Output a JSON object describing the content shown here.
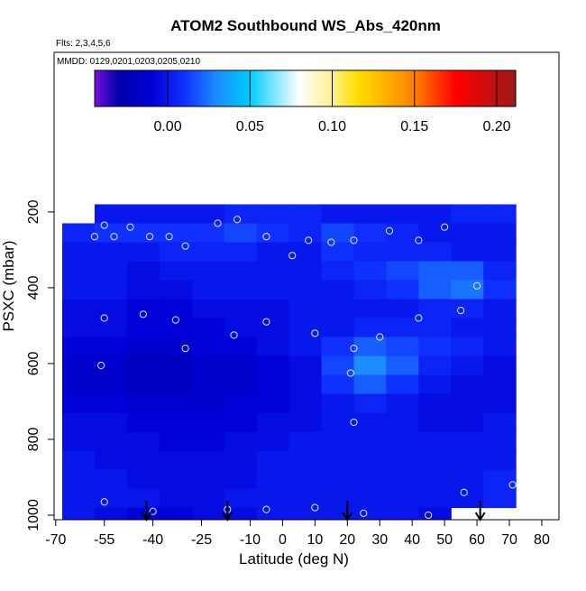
{
  "chart_data": {
    "type": "curtain",
    "title": "ATOM2 Southbound WS_Abs_420nm",
    "subtitle": "Flts: 2,3,4,5,6",
    "annotation": "MMDD: 0129,0201,0203,0205,0210",
    "x_label": "Latitude (deg N)",
    "y_label": "PSXC (mbar)",
    "xlim": [
      -70.5,
      85.3
    ],
    "xticks": [
      -70,
      -55,
      -40,
      -25,
      -10,
      0,
      10,
      20,
      30,
      40,
      50,
      60,
      70,
      80
    ],
    "ylim": [
      -221,
      1012
    ],
    "y_reversed": true,
    "yticks": [
      200,
      400,
      600,
      800,
      1000
    ],
    "colorbar_lim": [
      -0.0444,
      0.2115
    ],
    "colorbar_ticks": [
      {
        "value": 0,
        "label": "0.00"
      },
      {
        "value": 0.05,
        "label": "0.05"
      },
      {
        "value": 0.1,
        "label": "0.10"
      },
      {
        "value": 0.15,
        "label": "0.15"
      },
      {
        "value": 0.2,
        "label": "0.20"
      }
    ],
    "colorscale": [
      [
        -0.045,
        "#7a10e0"
      ],
      [
        -0.03,
        "#0000a8"
      ],
      [
        -0.01,
        "#0000d8"
      ],
      [
        0.01,
        "#1030ff"
      ],
      [
        0.03,
        "#1c8cff"
      ],
      [
        0.05,
        "#00ccff"
      ],
      [
        0.08,
        "#ffffff"
      ],
      [
        0.1,
        "#fff090"
      ],
      [
        0.115,
        "#ffe000"
      ],
      [
        0.15,
        "#ff8000"
      ],
      [
        0.175,
        "#ff0000"
      ],
      [
        0.21,
        "#a01818"
      ]
    ],
    "lat_edges": [
      -68,
      -58,
      -48,
      -38,
      -28,
      -18,
      -8,
      2,
      12,
      22,
      32,
      42,
      52,
      62,
      72
    ],
    "pressure_edges": [
      180,
      230,
      280,
      330,
      380,
      430,
      480,
      530,
      580,
      630,
      680,
      730,
      780,
      830,
      880,
      930,
      980,
      1012
    ],
    "values": [
      [
        null,
        0.0,
        0.0,
        0.0,
        0.0,
        0.005,
        0.005,
        0.005,
        0.0,
        0.0,
        0.0,
        0.0,
        0.005,
        0.005
      ],
      [
        0.005,
        0.01,
        0.01,
        0.01,
        0.01,
        0.015,
        0.01,
        0.005,
        0.015,
        0.01,
        0.005,
        0.0,
        0.0,
        0.0
      ],
      [
        0.0,
        0.0,
        0.0,
        0.005,
        0.005,
        0.005,
        0.0,
        0.0,
        0.01,
        0.005,
        0.005,
        0.005,
        0.0,
        0.0
      ],
      [
        0.0,
        0.0,
        -0.005,
        0.0,
        0.0,
        0.0,
        0.0,
        0.0,
        0.005,
        0.01,
        0.015,
        0.02,
        0.02,
        0.005
      ],
      [
        0.0,
        0.0,
        -0.005,
        -0.005,
        0.0,
        0.0,
        0.0,
        0.0,
        0.0,
        0.005,
        0.01,
        0.02,
        0.025,
        0.01
      ],
      [
        -0.005,
        -0.005,
        -0.01,
        -0.01,
        -0.005,
        -0.005,
        -0.005,
        0.0,
        0.0,
        0.0,
        0.0,
        0.005,
        0.005,
        0.0
      ],
      [
        -0.005,
        -0.005,
        -0.01,
        -0.01,
        -0.01,
        -0.005,
        -0.005,
        0.0,
        0.0,
        0.005,
        0.005,
        0.005,
        0.0,
        0.0
      ],
      [
        -0.01,
        -0.01,
        -0.015,
        -0.015,
        -0.01,
        -0.01,
        -0.005,
        0.0,
        0.01,
        0.02,
        0.015,
        0.01,
        0.005,
        0.0
      ],
      [
        -0.015,
        -0.015,
        -0.02,
        -0.02,
        -0.015,
        -0.015,
        -0.01,
        -0.005,
        0.015,
        0.03,
        0.02,
        0.005,
        0.0,
        -0.005
      ],
      [
        -0.015,
        -0.015,
        -0.02,
        -0.02,
        -0.015,
        -0.015,
        -0.01,
        -0.005,
        0.01,
        0.02,
        0.01,
        0.0,
        -0.005,
        -0.005
      ],
      [
        -0.01,
        -0.01,
        -0.015,
        -0.015,
        -0.015,
        -0.01,
        -0.01,
        -0.005,
        0.0,
        0.005,
        0.0,
        -0.005,
        -0.005,
        -0.005
      ],
      [
        -0.005,
        -0.005,
        -0.01,
        -0.01,
        -0.01,
        -0.01,
        -0.005,
        -0.005,
        0.0,
        0.0,
        0.0,
        -0.005,
        -0.005,
        0.0
      ],
      [
        -0.005,
        -0.005,
        -0.005,
        -0.01,
        -0.01,
        -0.005,
        -0.005,
        0.0,
        0.0,
        0.0,
        0.0,
        0.0,
        0.0,
        0.0
      ],
      [
        0.0,
        -0.005,
        -0.005,
        -0.005,
        -0.005,
        -0.005,
        0.0,
        0.0,
        0.0,
        0.0,
        0.0,
        0.0,
        0.0,
        0.0
      ],
      [
        0.0,
        0.0,
        -0.005,
        -0.005,
        -0.005,
        -0.005,
        0.0,
        0.0,
        0.0,
        0.0,
        0.0,
        0.0,
        0.0,
        0.005
      ],
      [
        0.0,
        0.0,
        0.0,
        -0.005,
        -0.005,
        0.0,
        0.0,
        0.0,
        0.0,
        0.0,
        0.0,
        0.0,
        0.0,
        0.005
      ],
      [
        0.0,
        -0.005,
        -0.01,
        -0.01,
        -0.005,
        -0.005,
        0.0,
        0.0,
        0.0,
        0.0,
        0.0,
        -0.005,
        null,
        null
      ]
    ],
    "points": {
      "x": [
        -58,
        -55,
        -52,
        -47,
        -41,
        -35,
        -30,
        -20,
        -14,
        -5,
        3,
        8,
        15,
        22,
        33,
        42,
        50,
        60,
        -55,
        -43,
        -33,
        -15,
        -5,
        10,
        22,
        30,
        42,
        55,
        -56,
        -30,
        21,
        22,
        56,
        -55,
        -40,
        -17,
        -5,
        10,
        25,
        45,
        71
      ],
      "y": [
        265,
        235,
        265,
        240,
        265,
        265,
        290,
        230,
        220,
        265,
        315,
        275,
        280,
        275,
        250,
        275,
        240,
        395,
        480,
        470,
        485,
        525,
        490,
        520,
        560,
        530,
        480,
        460,
        605,
        560,
        625,
        755,
        940,
        965,
        990,
        985,
        985,
        980,
        995,
        1000,
        920
      ]
    },
    "arrows_x": [
      -42,
      -17,
      20,
      61
    ]
  }
}
